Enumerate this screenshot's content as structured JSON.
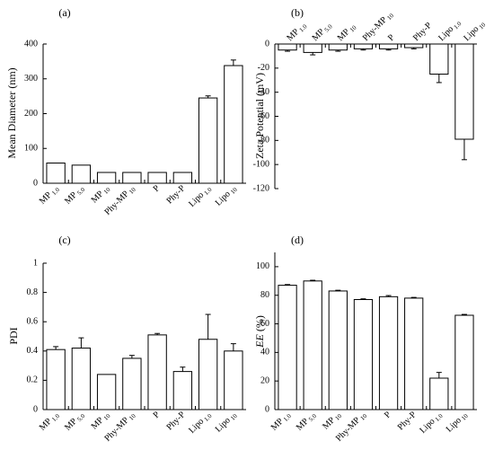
{
  "chart_data": [
    {
      "panel": "(a)",
      "type": "bar",
      "categories": [
        "MP",
        "MP",
        "MP",
        "Phy-MP",
        "P",
        "Phy-P",
        "Lipo",
        "Lipo"
      ],
      "category_subscripts": [
        "1.0",
        "5.0",
        "10",
        "10",
        "",
        "",
        "1.0",
        "10"
      ],
      "values": [
        58,
        52,
        31,
        31,
        31,
        31,
        245,
        338
      ],
      "errors": [
        0,
        0,
        0,
        0,
        0,
        0,
        6,
        16
      ],
      "ylabel": "Mean Diameter (nm)",
      "ylim": [
        0,
        400
      ],
      "yticks": [
        0,
        100,
        200,
        300,
        400
      ],
      "tick_labels": [
        "0",
        "100",
        "200",
        "300",
        "400"
      ],
      "label_position": "below"
    },
    {
      "panel": "(b)",
      "type": "bar",
      "categories": [
        "MP",
        "MP",
        "MP",
        "Phy-MP",
        "P",
        "Phy-P",
        "Lipo",
        "Lipo"
      ],
      "category_subscripts": [
        "1.0",
        "5.0",
        "10",
        "10",
        "",
        "",
        "1.0",
        "10"
      ],
      "values": [
        -5,
        -7,
        -5,
        -4,
        -4,
        -3,
        -25,
        -79
      ],
      "errors": [
        1,
        2,
        1,
        1,
        1,
        1,
        7,
        17
      ],
      "ylabel": "Zeta Potential (mV)",
      "ylim": [
        -120,
        0
      ],
      "yticks": [
        0,
        -20,
        -40,
        -60,
        -80,
        -100,
        -120
      ],
      "tick_labels": [
        "0",
        "-20",
        "-40",
        "-60",
        "-80",
        "-100",
        "-120"
      ],
      "label_position": "top"
    },
    {
      "panel": "(c)",
      "type": "bar",
      "categories": [
        "MP",
        "MP",
        "MP",
        "Phy-MP",
        "P",
        "Phy-P",
        "Lipo",
        "Lipo"
      ],
      "category_subscripts": [
        "1.0",
        "5.0",
        "10",
        "10",
        "",
        "",
        "1.0",
        "10"
      ],
      "values": [
        0.41,
        0.42,
        0.24,
        0.35,
        0.51,
        0.26,
        0.48,
        0.4
      ],
      "errors": [
        0.02,
        0.07,
        0,
        0.02,
        0.01,
        0.03,
        0.17,
        0.05
      ],
      "ylabel": "PDI",
      "ylim": [
        0,
        1
      ],
      "yticks": [
        0,
        0.2,
        0.4,
        0.6,
        0.8,
        1
      ],
      "tick_labels": [
        "0",
        "0.2",
        "0.4",
        "0.6",
        "0.8",
        "1"
      ],
      "label_position": "below"
    },
    {
      "panel": "(d)",
      "type": "bar",
      "categories": [
        "MP",
        "MP",
        "MP",
        "Phy-MP",
        "P",
        "Phy-P",
        "Lipo",
        "Lipo"
      ],
      "category_subscripts": [
        "1.0",
        "5.0",
        "10",
        "10",
        "",
        "",
        "1.0",
        "10"
      ],
      "values": [
        87,
        90,
        83,
        77,
        79,
        78,
        22,
        66
      ],
      "errors": [
        0.5,
        0.5,
        0.5,
        0.5,
        0.8,
        0.5,
        4,
        0.6
      ],
      "ylabel": "EE (%)",
      "ylim": [
        0,
        110
      ],
      "yticks": [
        0,
        20,
        40,
        60,
        80,
        100
      ],
      "tick_labels": [
        "0",
        "20",
        "40",
        "60",
        "80",
        "100"
      ],
      "label_position": "below"
    }
  ]
}
